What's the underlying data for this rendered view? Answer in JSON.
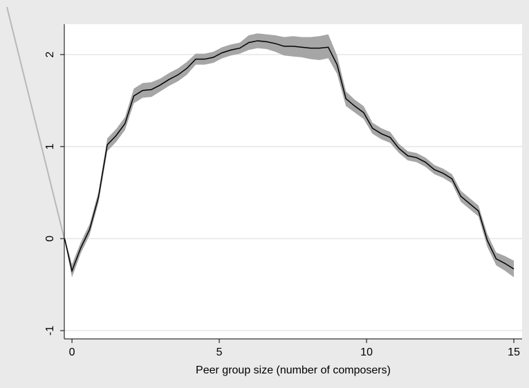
{
  "chart_data": {
    "type": "line",
    "x_label": "Peer group size (number of composers)",
    "x": [
      -0.25,
      0,
      0.3,
      0.6,
      0.9,
      1.2,
      1.5,
      1.8,
      2.1,
      2.4,
      2.7,
      3.0,
      3.3,
      3.6,
      3.9,
      4.2,
      4.5,
      4.8,
      5.1,
      5.4,
      5.7,
      6.0,
      6.3,
      6.6,
      6.9,
      7.2,
      7.5,
      7.8,
      8.1,
      8.4,
      8.7,
      9.0,
      9.3,
      9.6,
      9.9,
      10.2,
      10.5,
      10.8,
      11.1,
      11.4,
      11.7,
      12.0,
      12.3,
      12.6,
      12.9,
      13.2,
      13.5,
      13.8,
      14.1,
      14.4,
      14.7,
      15.0
    ],
    "values": [
      0,
      -0.35,
      -0.1,
      0.1,
      0.45,
      1.02,
      1.12,
      1.25,
      1.55,
      1.61,
      1.62,
      1.67,
      1.73,
      1.78,
      1.85,
      1.95,
      1.95,
      1.97,
      2.02,
      2.05,
      2.07,
      2.13,
      2.15,
      2.14,
      2.12,
      2.09,
      2.09,
      2.08,
      2.07,
      2.07,
      2.08,
      1.89,
      1.52,
      1.44,
      1.37,
      1.2,
      1.14,
      1.1,
      0.98,
      0.9,
      0.88,
      0.83,
      0.75,
      0.71,
      0.65,
      0.46,
      0.38,
      0.3,
      -0.02,
      -0.22,
      -0.27,
      -0.33
    ],
    "color": "#000000",
    "band": {
      "color": "#a6a6a6",
      "lower": [
        -0.02,
        -0.42,
        -0.16,
        0.04,
        0.39,
        0.95,
        1.05,
        1.18,
        1.47,
        1.53,
        1.54,
        1.6,
        1.66,
        1.71,
        1.78,
        1.89,
        1.89,
        1.91,
        1.96,
        1.99,
        2.01,
        2.05,
        2.07,
        2.06,
        2.03,
        1.99,
        1.98,
        1.97,
        1.95,
        1.94,
        1.96,
        1.79,
        1.44,
        1.37,
        1.3,
        1.14,
        1.08,
        1.04,
        0.93,
        0.85,
        0.83,
        0.78,
        0.7,
        0.66,
        0.6,
        0.4,
        0.32,
        0.24,
        -0.09,
        -0.29,
        -0.35,
        -0.42
      ],
      "upper": [
        0.02,
        -0.28,
        -0.04,
        0.16,
        0.51,
        1.09,
        1.19,
        1.32,
        1.63,
        1.69,
        1.7,
        1.74,
        1.8,
        1.85,
        1.92,
        2.01,
        2.01,
        2.03,
        2.08,
        2.11,
        2.13,
        2.21,
        2.23,
        2.22,
        2.21,
        2.19,
        2.2,
        2.19,
        2.19,
        2.2,
        2.22,
        1.99,
        1.6,
        1.51,
        1.44,
        1.26,
        1.2,
        1.16,
        1.03,
        0.95,
        0.93,
        0.88,
        0.8,
        0.76,
        0.7,
        0.52,
        0.44,
        0.36,
        0.05,
        -0.15,
        -0.19,
        -0.24
      ]
    },
    "xlim": [
      -0.26,
      15.28
    ],
    "ylim": [
      -1.09,
      2.33
    ],
    "xticks": [
      0,
      5,
      10,
      15
    ],
    "yticks": [
      -1,
      0,
      1,
      2
    ],
    "grid": true
  }
}
